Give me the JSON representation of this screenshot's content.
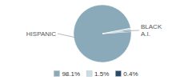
{
  "chart_data": {
    "type": "pie",
    "categories": [
      "98.1%",
      "1.5%",
      "0.4%"
    ],
    "values": [
      98.1,
      1.5,
      0.4
    ],
    "colors": [
      "#8aaab9",
      "#c8dce6",
      "#2b4a6b"
    ],
    "annotations": [
      "HISPANIC",
      "BLACK\nA.I."
    ],
    "legend": "bottom"
  }
}
